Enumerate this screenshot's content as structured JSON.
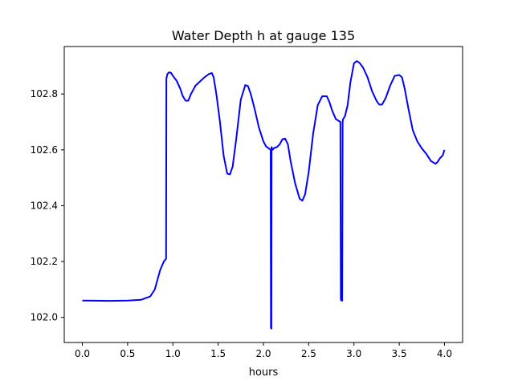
{
  "chart_data": {
    "type": "line",
    "title": "Water Depth h at gauge 135",
    "xlabel": "hours",
    "ylabel": "",
    "xlim": [
      -0.2,
      4.2
    ],
    "ylim": [
      101.91,
      102.97
    ],
    "grid": false,
    "x_ticks": [
      0.0,
      0.5,
      1.0,
      1.5,
      2.0,
      2.5,
      3.0,
      3.5,
      4.0
    ],
    "x_tick_labels": [
      "0.0",
      "0.5",
      "1.0",
      "1.5",
      "2.0",
      "2.5",
      "3.0",
      "3.5",
      "4.0"
    ],
    "y_ticks": [
      102.0,
      102.2,
      102.4,
      102.6,
      102.8
    ],
    "y_tick_labels": [
      "102.0",
      "102.2",
      "102.4",
      "102.6",
      "102.8"
    ],
    "series": [
      {
        "color": "#0000ff",
        "x": [
          0.0,
          0.3,
          0.5,
          0.65,
          0.75,
          0.8,
          0.83,
          0.86,
          0.9,
          0.925,
          0.928,
          0.94,
          0.96,
          0.98,
          1.0,
          1.04,
          1.08,
          1.11,
          1.14,
          1.17,
          1.2,
          1.25,
          1.3,
          1.35,
          1.4,
          1.43,
          1.45,
          1.48,
          1.52,
          1.56,
          1.6,
          1.63,
          1.66,
          1.7,
          1.75,
          1.8,
          1.83,
          1.86,
          1.9,
          1.95,
          2.0,
          2.03,
          2.06,
          2.08,
          2.083,
          2.088,
          2.09,
          2.1,
          2.12,
          2.15,
          2.18,
          2.21,
          2.24,
          2.27,
          2.3,
          2.35,
          2.4,
          2.43,
          2.46,
          2.5,
          2.55,
          2.6,
          2.65,
          2.7,
          2.73,
          2.76,
          2.8,
          2.85,
          2.855,
          2.86,
          2.87,
          2.875,
          2.88,
          2.9,
          2.93,
          2.96,
          3.0,
          3.03,
          3.06,
          3.1,
          3.15,
          3.2,
          3.25,
          3.28,
          3.31,
          3.35,
          3.4,
          3.45,
          3.5,
          3.53,
          3.56,
          3.6,
          3.65,
          3.7,
          3.75,
          3.8,
          3.85,
          3.9,
          3.92,
          3.95,
          3.98,
          4.0
        ],
        "y": [
          102.06,
          102.059,
          102.06,
          102.063,
          102.075,
          102.1,
          102.135,
          102.17,
          102.2,
          102.21,
          102.855,
          102.872,
          102.878,
          102.875,
          102.865,
          102.848,
          102.82,
          102.792,
          102.776,
          102.776,
          102.8,
          102.83,
          102.845,
          102.86,
          102.872,
          102.875,
          102.86,
          102.8,
          102.7,
          102.58,
          102.515,
          102.512,
          102.54,
          102.64,
          102.78,
          102.832,
          102.828,
          102.8,
          102.75,
          102.68,
          102.63,
          102.612,
          102.605,
          102.6,
          101.962,
          101.96,
          102.61,
          102.6,
          102.607,
          102.61,
          102.62,
          102.638,
          102.64,
          102.62,
          102.56,
          102.48,
          102.425,
          102.418,
          102.44,
          102.52,
          102.66,
          102.76,
          102.792,
          102.792,
          102.77,
          102.74,
          102.71,
          102.7,
          102.065,
          102.06,
          102.06,
          102.7,
          102.71,
          102.72,
          102.76,
          102.84,
          102.91,
          102.918,
          102.912,
          102.895,
          102.86,
          102.81,
          102.775,
          102.762,
          102.762,
          102.785,
          102.83,
          102.865,
          102.868,
          102.86,
          102.82,
          102.75,
          102.67,
          102.63,
          102.605,
          102.585,
          102.56,
          102.55,
          102.555,
          102.57,
          102.58,
          102.6
        ]
      }
    ]
  }
}
